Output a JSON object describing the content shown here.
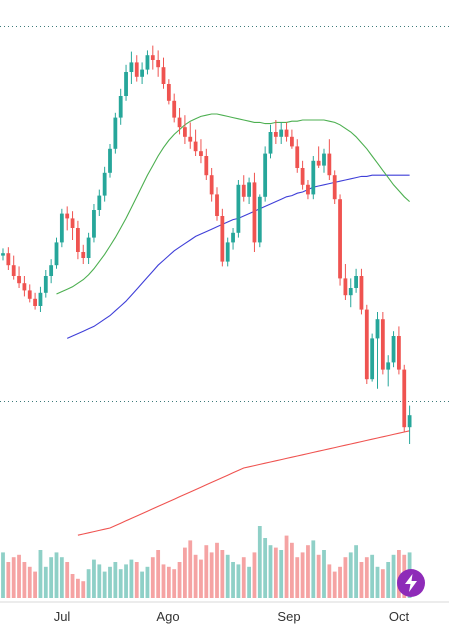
{
  "chart_data": {
    "type": "candlestick",
    "x_labels": [
      "Jul",
      "Ago",
      "Sep",
      "Oct"
    ],
    "candles": [
      [
        207,
        213,
        203,
        209
      ],
      [
        209,
        214,
        195,
        199
      ],
      [
        199,
        207,
        187,
        190
      ],
      [
        190,
        198,
        180,
        184
      ],
      [
        184,
        190,
        173,
        178
      ],
      [
        178,
        183,
        168,
        171
      ],
      [
        171,
        176,
        162,
        165
      ],
      [
        165,
        181,
        160,
        176
      ],
      [
        176,
        195,
        172,
        190
      ],
      [
        190,
        204,
        184,
        199
      ],
      [
        199,
        222,
        196,
        218
      ],
      [
        218,
        246,
        214,
        242
      ],
      [
        242,
        248,
        228,
        238
      ],
      [
        238,
        244,
        220,
        230
      ],
      [
        230,
        236,
        204,
        210
      ],
      [
        210,
        216,
        200,
        205
      ],
      [
        205,
        226,
        200,
        222
      ],
      [
        222,
        250,
        218,
        245
      ],
      [
        245,
        262,
        240,
        257
      ],
      [
        257,
        281,
        252,
        276
      ],
      [
        276,
        300,
        272,
        296
      ],
      [
        296,
        326,
        292,
        322
      ],
      [
        322,
        346,
        316,
        340
      ],
      [
        340,
        366,
        336,
        360
      ],
      [
        360,
        377,
        350,
        368
      ],
      [
        368,
        374,
        352,
        356
      ],
      [
        356,
        368,
        350,
        362
      ],
      [
        362,
        378,
        358,
        374
      ],
      [
        374,
        382,
        362,
        370
      ],
      [
        370,
        378,
        356,
        364
      ],
      [
        364,
        372,
        346,
        350
      ],
      [
        350,
        354,
        333,
        336
      ],
      [
        336,
        342,
        318,
        322
      ],
      [
        322,
        330,
        308,
        314
      ],
      [
        314,
        324,
        300,
        306
      ],
      [
        306,
        318,
        296,
        302
      ],
      [
        302,
        312,
        290,
        294
      ],
      [
        294,
        304,
        284,
        290
      ],
      [
        290,
        296,
        270,
        274
      ],
      [
        274,
        280,
        252,
        258
      ],
      [
        258,
        264,
        236,
        240
      ],
      [
        240,
        246,
        198,
        202
      ],
      [
        202,
        222,
        198,
        218
      ],
      [
        218,
        230,
        212,
        226
      ],
      [
        226,
        270,
        222,
        266
      ],
      [
        266,
        274,
        252,
        256
      ],
      [
        256,
        272,
        250,
        268
      ],
      [
        268,
        276,
        210,
        218
      ],
      [
        218,
        258,
        214,
        256
      ],
      [
        256,
        298,
        252,
        292
      ],
      [
        292,
        316,
        288,
        310
      ],
      [
        310,
        320,
        300,
        306
      ],
      [
        306,
        318,
        300,
        312
      ],
      [
        312,
        318,
        302,
        306
      ],
      [
        306,
        312,
        296,
        298
      ],
      [
        298,
        304,
        276,
        280
      ],
      [
        280,
        286,
        262,
        266
      ],
      [
        266,
        270,
        254,
        258
      ],
      [
        258,
        290,
        254,
        286
      ],
      [
        286,
        298,
        280,
        282
      ],
      [
        282,
        296,
        276,
        292
      ],
      [
        292,
        304,
        270,
        274
      ],
      [
        274,
        278,
        250,
        254
      ],
      [
        254,
        258,
        182,
        188
      ],
      [
        188,
        200,
        170,
        174
      ],
      [
        174,
        188,
        164,
        180
      ],
      [
        180,
        196,
        176,
        190
      ],
      [
        190,
        196,
        158,
        162
      ],
      [
        162,
        166,
        100,
        104
      ],
      [
        104,
        142,
        102,
        138
      ],
      [
        138,
        160,
        96,
        154
      ],
      [
        154,
        160,
        108,
        112
      ],
      [
        112,
        124,
        98,
        118
      ],
      [
        118,
        144,
        114,
        140
      ],
      [
        140,
        148,
        108,
        112
      ],
      [
        112,
        116,
        60,
        64
      ],
      [
        64,
        82,
        50,
        74
      ]
    ],
    "volumes": [
      38,
      30,
      34,
      36,
      30,
      26,
      22,
      40,
      26,
      34,
      38,
      34,
      30,
      20,
      16,
      14,
      24,
      32,
      28,
      22,
      26,
      30,
      24,
      28,
      32,
      30,
      22,
      26,
      34,
      40,
      28,
      26,
      24,
      30,
      42,
      48,
      36,
      32,
      44,
      38,
      46,
      40,
      36,
      30,
      28,
      34,
      26,
      38,
      60,
      50,
      44,
      42,
      40,
      52,
      46,
      34,
      38,
      44,
      48,
      36,
      40,
      28,
      22,
      26,
      34,
      38,
      44,
      30,
      34,
      36,
      26,
      24,
      30,
      36,
      40,
      36,
      38
    ],
    "ma_short": [
      null,
      null,
      null,
      null,
      null,
      null,
      null,
      null,
      null,
      null,
      175,
      177,
      179,
      181,
      184,
      187,
      191,
      196,
      202,
      208,
      215,
      222,
      230,
      238,
      247,
      256,
      265,
      274,
      282,
      290,
      297,
      303,
      308,
      312,
      316,
      319,
      321,
      323,
      324,
      325,
      325,
      324,
      323,
      322,
      321,
      320,
      319,
      318,
      318,
      317,
      317,
      318,
      318,
      318,
      319,
      319,
      320,
      320,
      320,
      320,
      320,
      319,
      318,
      316,
      313,
      310,
      306,
      301,
      296,
      290,
      284,
      278,
      272,
      266,
      261,
      256,
      252
    ],
    "ma_medium": [
      null,
      null,
      null,
      null,
      null,
      null,
      null,
      null,
      null,
      null,
      null,
      null,
      138,
      140,
      142,
      144,
      146,
      148,
      151,
      154,
      157,
      161,
      165,
      169,
      174,
      179,
      184,
      189,
      194,
      199,
      203,
      207,
      211,
      214,
      217,
      220,
      223,
      225,
      227,
      229,
      231,
      233,
      235,
      237,
      238,
      240,
      242,
      244,
      246,
      248,
      250,
      252,
      254,
      256,
      257,
      259,
      260,
      262,
      264,
      265,
      266,
      267,
      268,
      269,
      270,
      271,
      272,
      273,
      273,
      274,
      274,
      274,
      274,
      274,
      274,
      274,
      274
    ],
    "ma_long": [
      null,
      null,
      null,
      null,
      null,
      null,
      null,
      null,
      null,
      null,
      null,
      null,
      null,
      null,
      -26,
      -25,
      -24,
      -23,
      -22,
      -21,
      -20,
      -18,
      -16,
      -14,
      -12,
      -10,
      -8,
      -6,
      -4,
      -2,
      0,
      2,
      4,
      6,
      8,
      10,
      12,
      14,
      16,
      18,
      20,
      22,
      24,
      26,
      28,
      30,
      31,
      32,
      33,
      34,
      35,
      36,
      37,
      38,
      39,
      40,
      41,
      42,
      43,
      44,
      45,
      46,
      47,
      48,
      49,
      50,
      51,
      52,
      53,
      54,
      55,
      56,
      57,
      58,
      59,
      60,
      61
    ],
    "price_range": [
      -80,
      420
    ],
    "reference_lines": [
      398,
      86
    ],
    "colors": {
      "up": "#26a69a",
      "down": "#ef5350",
      "volume_up": "#8fd0c7",
      "volume_down": "#f5a3a3",
      "ma_short": "#4caf50",
      "ma_medium": "#3f3fd8",
      "ma_long": "#ef5350",
      "reference_line": "#3d7a7a",
      "bolt_button": "#8e2bb8"
    },
    "grid": false,
    "icons": {
      "bolt_button": "lightning-bolt-icon"
    }
  }
}
